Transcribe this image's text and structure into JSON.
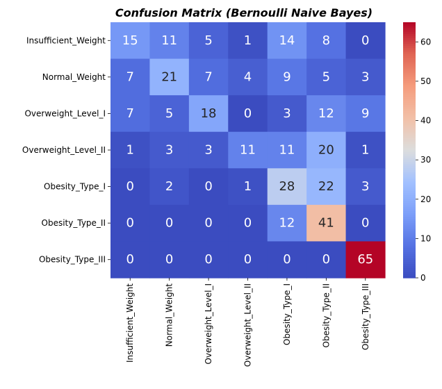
{
  "chart_data": {
    "type": "heatmap",
    "title": "Confusion Matrix (Bernoulli Naive Bayes)",
    "xlabel": "",
    "ylabel": "",
    "x_categories": [
      "Insufficient_Weight",
      "Normal_Weight",
      "Overweight_Level_I",
      "Overweight_Level_II",
      "Obesity_Type_I",
      "Obesity_Type_II",
      "Obesity_Type_III"
    ],
    "y_categories": [
      "Insufficient_Weight",
      "Normal_Weight",
      "Overweight_Level_I",
      "Overweight_Level_II",
      "Obesity_Type_I",
      "Obesity_Type_II",
      "Obesity_Type_III"
    ],
    "values": [
      [
        15,
        11,
        5,
        1,
        14,
        8,
        0
      ],
      [
        7,
        21,
        7,
        4,
        9,
        5,
        3
      ],
      [
        7,
        5,
        18,
        0,
        3,
        12,
        9
      ],
      [
        1,
        3,
        3,
        11,
        11,
        20,
        1
      ],
      [
        0,
        2,
        0,
        1,
        28,
        22,
        3
      ],
      [
        0,
        0,
        0,
        0,
        12,
        41,
        0
      ],
      [
        0,
        0,
        0,
        0,
        0,
        0,
        65
      ]
    ],
    "colormap": "coolwarm",
    "colorbar": {
      "range": [
        0,
        65
      ],
      "ticks": [
        0,
        10,
        20,
        30,
        40,
        50,
        60
      ]
    },
    "annotated": true,
    "grid": false,
    "legend": "none"
  }
}
